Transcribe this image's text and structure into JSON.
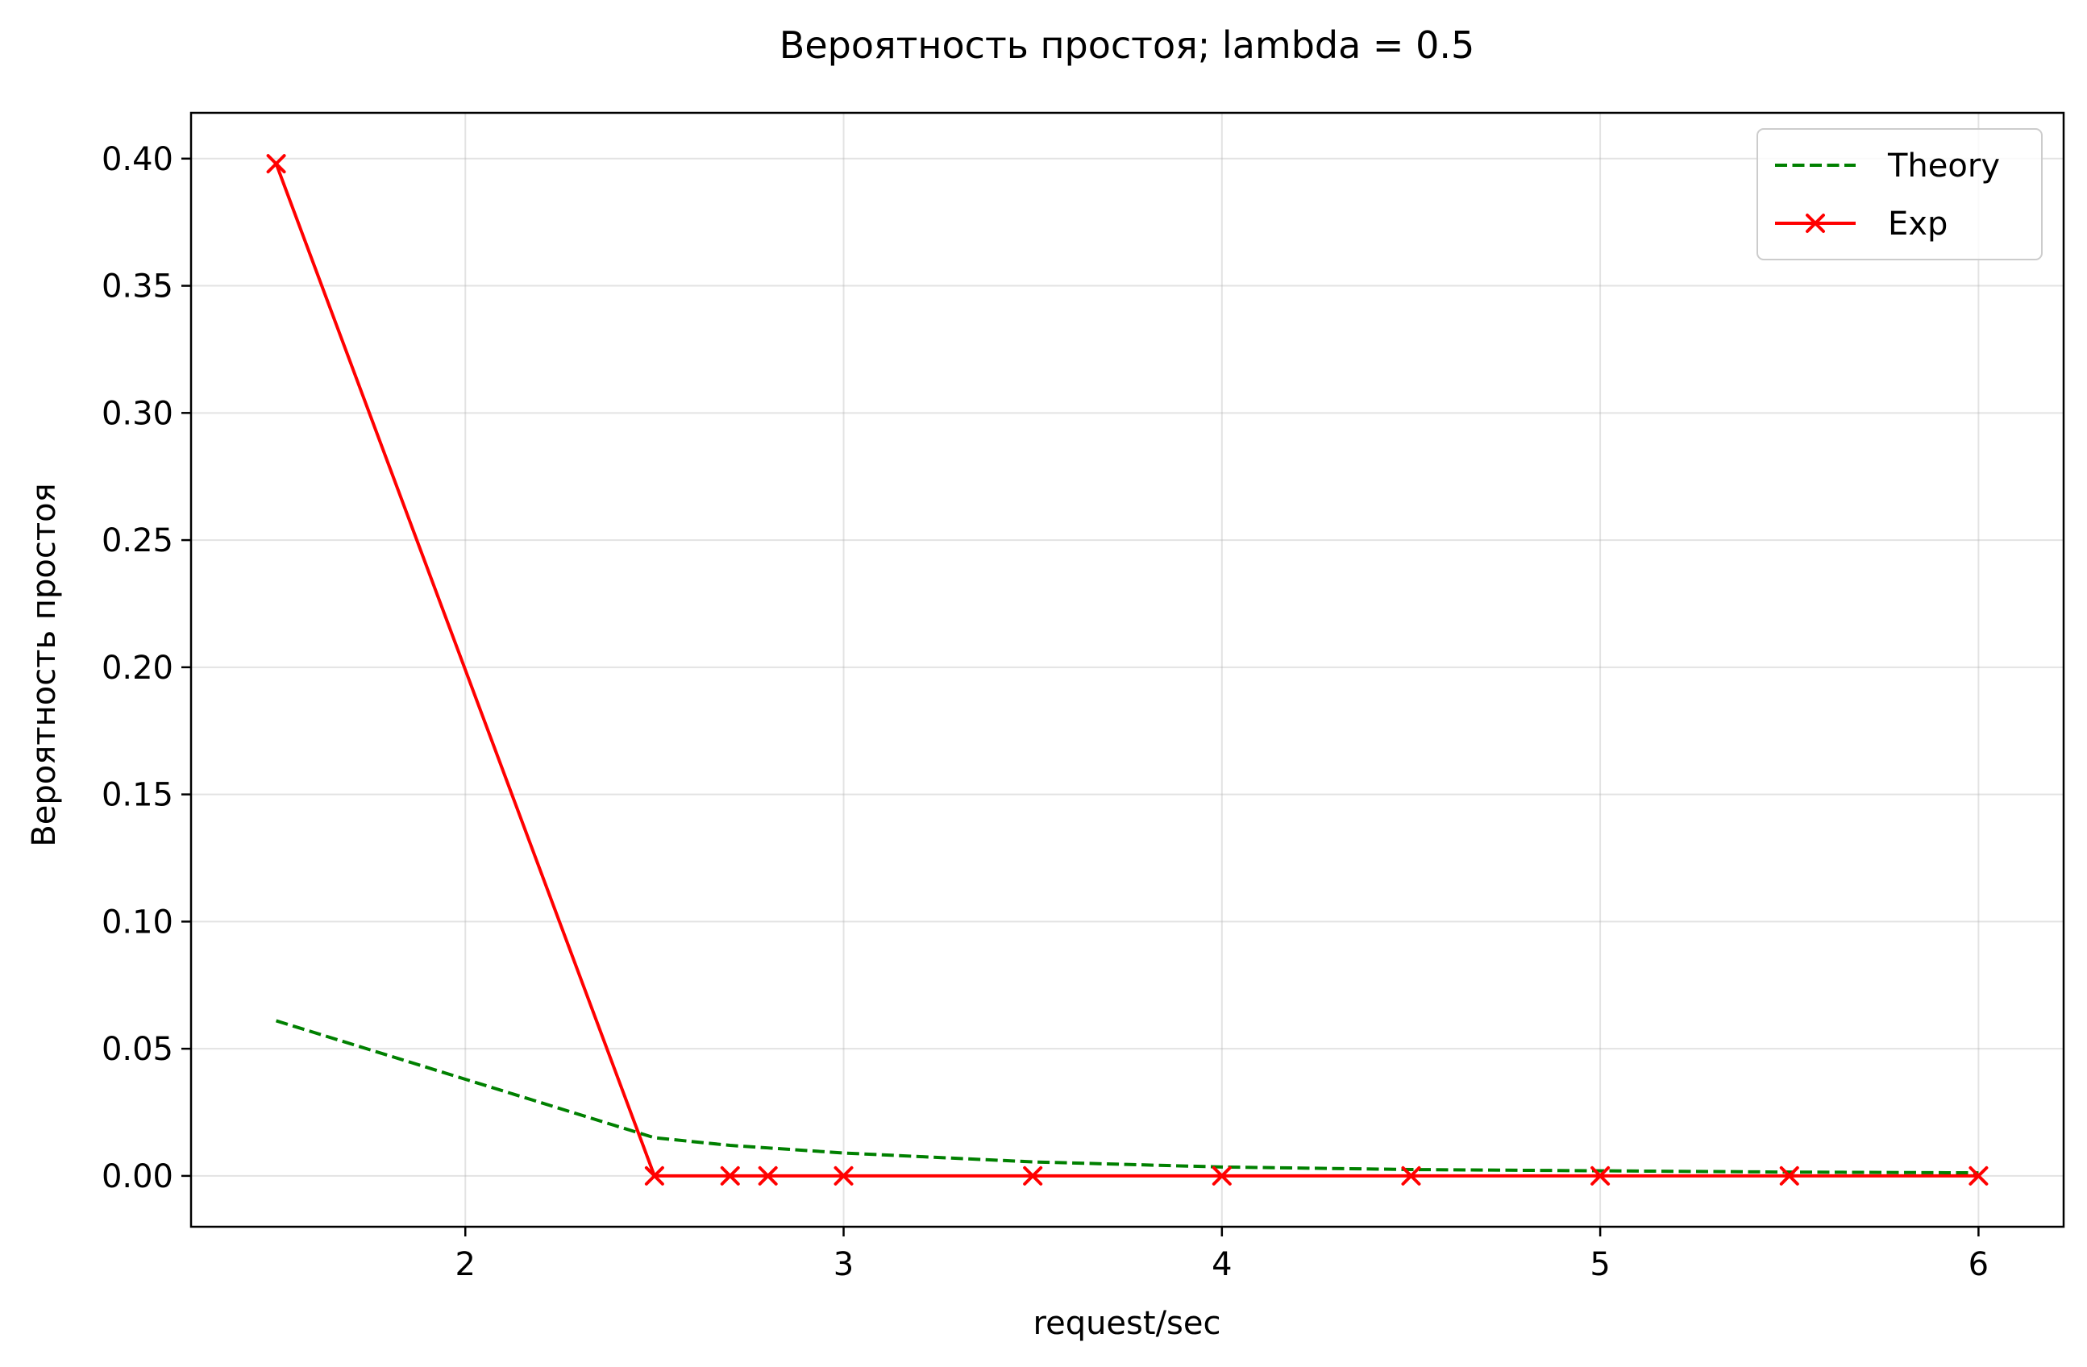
{
  "chart_data": {
    "type": "line",
    "title": "Вероятность простоя; lambda = 0.5",
    "xlabel": "request/sec",
    "ylabel": "Вероятность простоя",
    "xlim": [
      1.275,
      6.225
    ],
    "ylim": [
      -0.02,
      0.418
    ],
    "xticks": [
      2,
      3,
      4,
      5,
      6
    ],
    "yticks": [
      0.0,
      0.05,
      0.1,
      0.15,
      0.2,
      0.25,
      0.3,
      0.35,
      0.4
    ],
    "xtick_labels": [
      "2",
      "3",
      "4",
      "5",
      "6"
    ],
    "ytick_labels": [
      "0.00",
      "0.05",
      "0.10",
      "0.15",
      "0.20",
      "0.25",
      "0.30",
      "0.35",
      "0.40"
    ],
    "grid": true,
    "legend_position": "top-right",
    "series": [
      {
        "name": "Theory",
        "color": "#008000",
        "style": "dashed",
        "marker": "none",
        "x": [
          1.5,
          2.0,
          2.5,
          2.7,
          2.8,
          3.0,
          3.5,
          4.0,
          4.5,
          5.0,
          5.5,
          6.0
        ],
        "y": [
          0.061,
          0.038,
          0.015,
          0.012,
          0.011,
          0.009,
          0.0055,
          0.0035,
          0.0025,
          0.002,
          0.0015,
          0.0012
        ]
      },
      {
        "name": "Exp",
        "color": "#ff0000",
        "style": "solid",
        "marker": "x",
        "x": [
          1.5,
          2.5,
          2.7,
          2.8,
          3.0,
          3.5,
          4.0,
          4.5,
          5.0,
          5.5,
          6.0
        ],
        "y": [
          0.398,
          0.0,
          0.0,
          0.0,
          0.0,
          0.0,
          0.0,
          0.0,
          0.0,
          0.0,
          0.0
        ]
      }
    ]
  }
}
